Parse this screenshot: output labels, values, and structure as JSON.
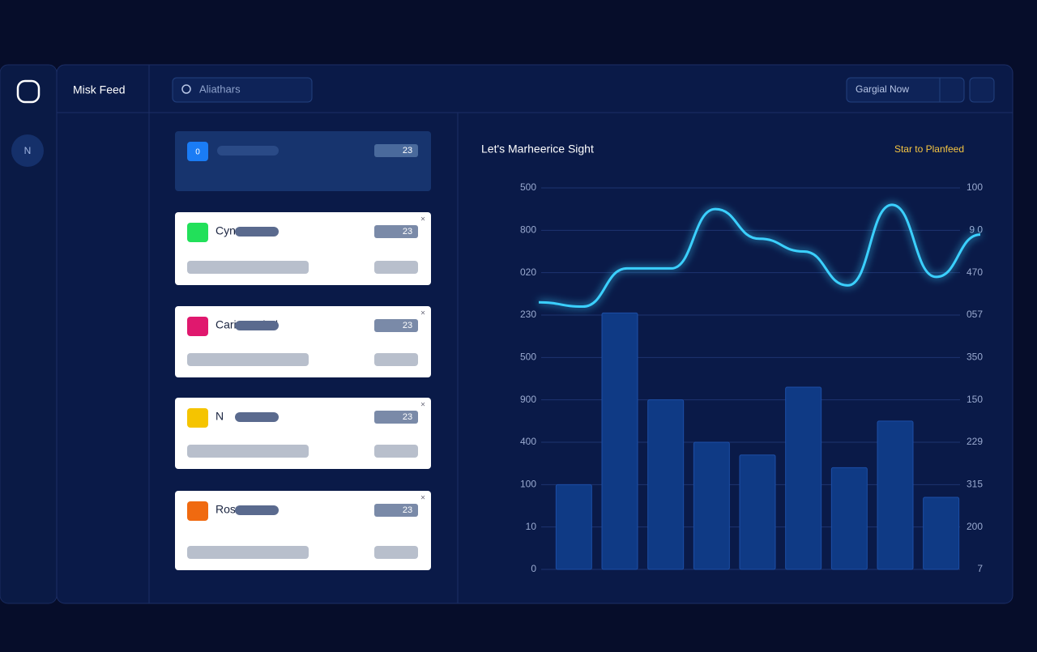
{
  "header": {
    "app_title": "Misk Feed",
    "search_placeholder": "Aliathars",
    "button": "Gargial Now"
  },
  "sidebar": {
    "item": "N"
  },
  "cards": [
    {
      "icon": "0",
      "title": "",
      "value": 23,
      "color": "#1a7cf5",
      "dark": true
    },
    {
      "icon": "",
      "title": "Cyn",
      "value": 23,
      "color": "#22e05a",
      "dark": false
    },
    {
      "icon": "",
      "title": "Cariner Fied",
      "value": 23,
      "color": "#e0186e",
      "dark": false
    },
    {
      "icon": "",
      "title": "N",
      "value": 23,
      "color": "#f5c400",
      "dark": false
    },
    {
      "icon": "",
      "title": "Rose",
      "value": 23,
      "color": "#f06a10",
      "dark": false
    }
  ],
  "chart": {
    "title": "Let's Marheerice Sight",
    "action": "Star to Planfeed",
    "ylim": [
      0,
      9
    ],
    "yticks": [
      {
        "value": 0,
        "label": "0"
      },
      {
        "value": 1,
        "label": "10"
      },
      {
        "value": 2,
        "label": "100"
      },
      {
        "value": 3,
        "label": "400"
      },
      {
        "value": 4,
        "label": "900"
      },
      {
        "value": 5,
        "label": "500"
      },
      {
        "value": 6,
        "label": "230"
      },
      {
        "value": 7,
        "label": "020"
      },
      {
        "value": 8,
        "label": "800"
      },
      {
        "value": 9,
        "label": "500"
      }
    ],
    "y2ticks": [
      {
        "value": 0,
        "label": "7"
      },
      {
        "value": 1,
        "label": "200"
      },
      {
        "value": 2,
        "label": "315"
      },
      {
        "value": 3,
        "label": "229"
      },
      {
        "value": 4,
        "label": "150"
      },
      {
        "value": 5,
        "label": "350"
      },
      {
        "value": 6,
        "label": "057"
      },
      {
        "value": 7,
        "label": "470"
      },
      {
        "value": 8,
        "label": "9 0"
      },
      {
        "value": 9,
        "label": "100"
      }
    ],
    "bars": [
      2.0,
      6.05,
      4.0,
      3.0,
      2.7,
      4.3,
      2.4,
      3.5,
      1.7
    ],
    "bar_color": "#0f3a85",
    "line": [
      6.3,
      6.2,
      7.1,
      7.1,
      8.5,
      7.8,
      7.5,
      6.7,
      8.6,
      6.9,
      7.9
    ],
    "line_color": "#3ad0ff"
  }
}
